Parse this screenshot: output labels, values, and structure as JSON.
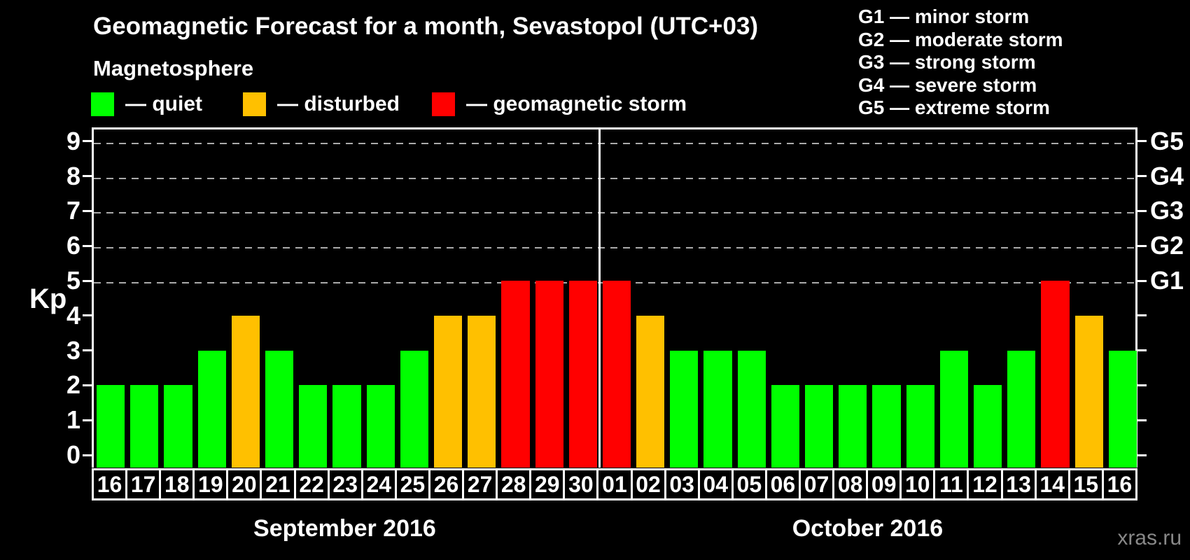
{
  "page": {
    "title": "Geomagnetic Forecast for a month, Sevastopol (UTC+03)",
    "subtitle": "Magnetosphere",
    "watermark": "xras.ru"
  },
  "legend": {
    "items": [
      {
        "key": "quiet",
        "label": "— quiet",
        "color": "#00ff00"
      },
      {
        "key": "disturbed",
        "label": "— disturbed",
        "color": "#ffc000"
      },
      {
        "key": "storm",
        "label": "— geomagnetic storm",
        "color": "#ff0000"
      }
    ]
  },
  "storm_scale_legend": {
    "items": [
      "G1 — minor storm",
      "G2 — moderate storm",
      "G3 — strong storm",
      "G4 — severe storm",
      "G5 — extreme storm"
    ]
  },
  "chart_data": {
    "type": "bar",
    "title": "Geomagnetic Forecast for a month, Sevastopol (UTC+03)",
    "ylabel": "Kp",
    "ylim": [
      0,
      9
    ],
    "yticks": [
      0,
      1,
      2,
      3,
      4,
      5,
      6,
      7,
      8,
      9
    ],
    "gridlines_at": [
      5,
      6,
      7,
      8,
      9
    ],
    "grid": "dashed horizontal lines at Kp 5-9 only",
    "legend_position": "top-left",
    "right_axis": [
      {
        "level": 5,
        "label": "G1"
      },
      {
        "level": 6,
        "label": "G2"
      },
      {
        "level": 7,
        "label": "G3"
      },
      {
        "level": 8,
        "label": "G4"
      },
      {
        "level": 9,
        "label": "G5"
      }
    ],
    "months": [
      {
        "label": "September 2016",
        "days": 15
      },
      {
        "label": "October 2016",
        "days": 16
      }
    ],
    "categories": [
      "16",
      "17",
      "18",
      "19",
      "20",
      "21",
      "22",
      "23",
      "24",
      "25",
      "26",
      "27",
      "28",
      "29",
      "30",
      "01",
      "02",
      "03",
      "04",
      "05",
      "06",
      "07",
      "08",
      "09",
      "10",
      "11",
      "12",
      "13",
      "14",
      "15",
      "16"
    ],
    "values": [
      2,
      2,
      2,
      3,
      4,
      3,
      2,
      2,
      2,
      3,
      4,
      4,
      5,
      5,
      5,
      5,
      4,
      3,
      3,
      3,
      2,
      2,
      2,
      2,
      2,
      3,
      2,
      3,
      5,
      4,
      3
    ],
    "status": [
      "quiet",
      "quiet",
      "quiet",
      "quiet",
      "disturbed",
      "quiet",
      "quiet",
      "quiet",
      "quiet",
      "quiet",
      "disturbed",
      "disturbed",
      "storm",
      "storm",
      "storm",
      "storm",
      "disturbed",
      "quiet",
      "quiet",
      "quiet",
      "quiet",
      "quiet",
      "quiet",
      "quiet",
      "quiet",
      "quiet",
      "quiet",
      "quiet",
      "storm",
      "disturbed",
      "quiet"
    ],
    "colors": {
      "quiet": "#00ff00",
      "disturbed": "#ffc000",
      "storm": "#ff0000"
    }
  }
}
